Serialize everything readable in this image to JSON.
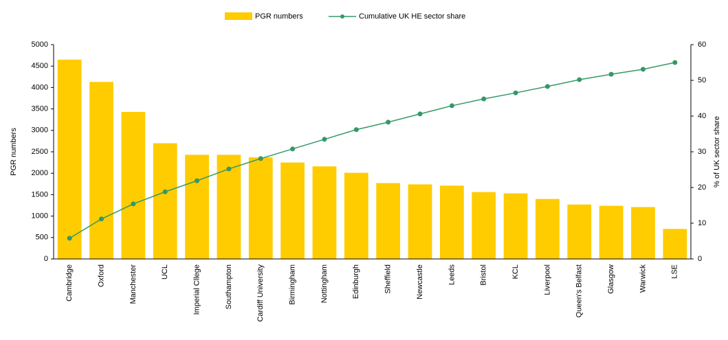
{
  "chart_data": {
    "type": "bar",
    "categories": [
      "Cambridge",
      "Oxford",
      "Manchester",
      "UCL",
      "Imperial Cllege",
      "Southampton",
      "Cardiff University",
      "Birmingham",
      "Nottingham",
      "Edinburgh",
      "Sheffield",
      "Newcastle",
      "Leeds",
      "Bristol",
      "KCL",
      "Liverpool",
      "Queen's Belfast",
      "Glasgow",
      "Warwick",
      "LSE"
    ],
    "series": [
      {
        "name": "PGR numbers",
        "type": "bar",
        "color": "#ffcc00",
        "values": [
          4650,
          4130,
          3430,
          2700,
          2430,
          2430,
          2370,
          2250,
          2160,
          2010,
          1770,
          1740,
          1710,
          1560,
          1530,
          1400,
          1270,
          1240,
          1210,
          700
        ]
      },
      {
        "name": "Cumulative UK HE sector share",
        "type": "line",
        "axis": "y2",
        "color": "#339966",
        "values": [
          5.8,
          11.2,
          15.4,
          18.8,
          21.9,
          25.2,
          28.1,
          30.8,
          33.5,
          36.2,
          38.3,
          40.6,
          42.9,
          44.8,
          46.5,
          48.3,
          50.2,
          51.7,
          53.1,
          55.0
        ]
      }
    ],
    "y_label": "PGR numbers",
    "y2_label": "% of UK sector share",
    "ylim": [
      0,
      5000
    ],
    "yticks": [
      0,
      500,
      1000,
      1500,
      2000,
      2500,
      3000,
      3500,
      4000,
      4500,
      5000
    ],
    "y2lim": [
      0,
      60
    ],
    "y2ticks": [
      0,
      10,
      20,
      30,
      40,
      50,
      60
    ],
    "legend": "top"
  }
}
